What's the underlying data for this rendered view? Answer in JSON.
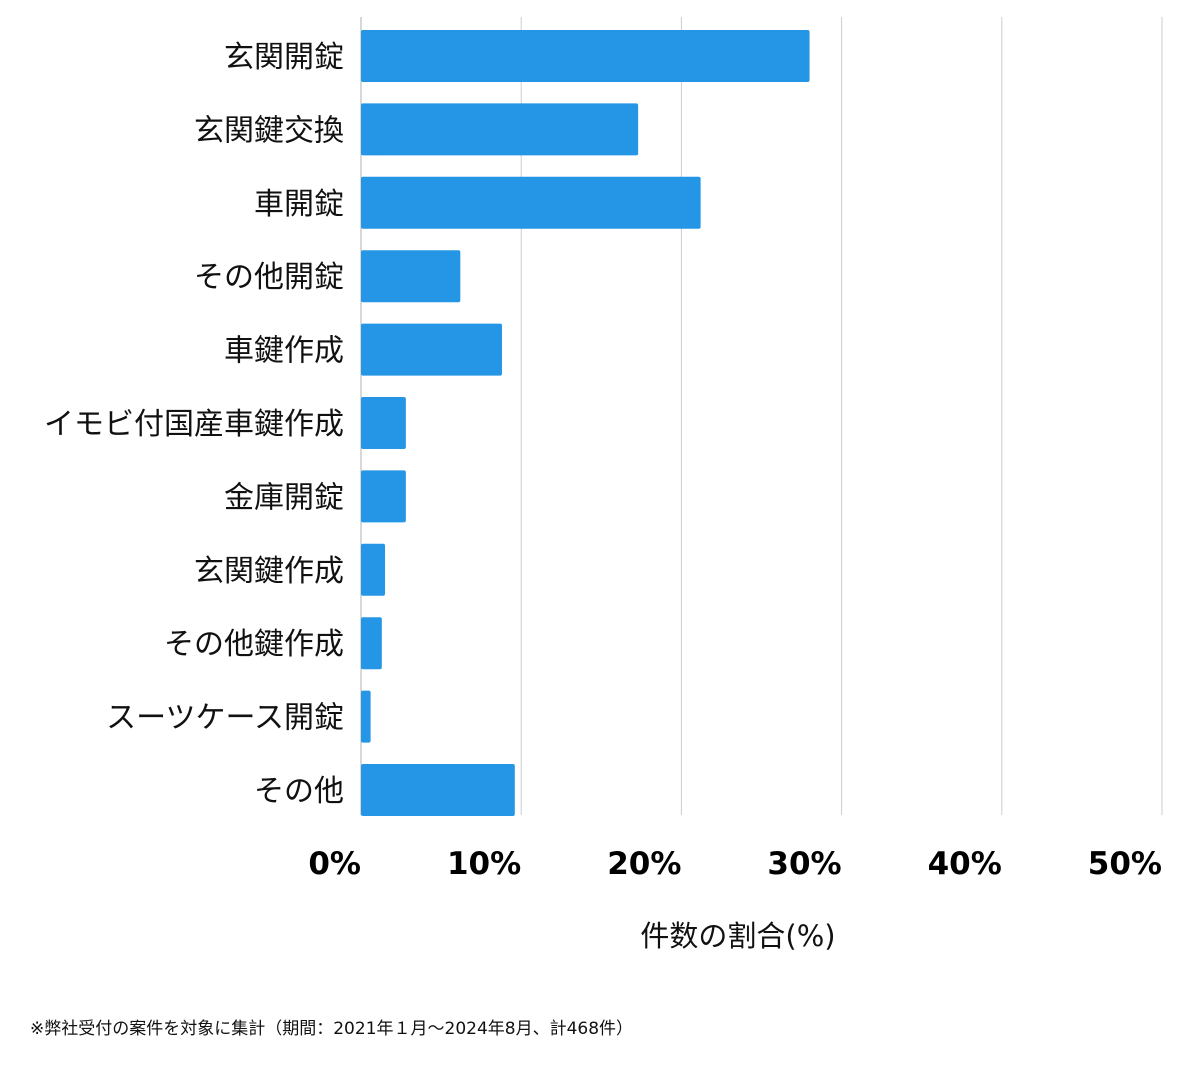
{
  "chart_data": {
    "type": "bar",
    "orientation": "horizontal",
    "categories": [
      "玄関開錠",
      "玄関鍵交換",
      "車開錠",
      "その他開錠",
      "車鍵作成",
      "イモビ付国産車鍵作成",
      "金庫開錠",
      "玄関鍵作成",
      "その他鍵作成",
      "スーツケース開錠",
      "その他"
    ],
    "values": [
      28.0,
      17.3,
      21.2,
      6.2,
      8.8,
      2.8,
      2.8,
      1.5,
      1.3,
      0.6,
      9.6
    ],
    "xlabel": "件数の割合(%)",
    "ylabel": "",
    "xlim": [
      0,
      50
    ],
    "xticks": [
      "0%",
      "10%",
      "20%",
      "30%",
      "40%",
      "50%"
    ],
    "grid": "vertical",
    "bar_color": "#2596e6",
    "grid_color": "#cccccc"
  },
  "footnote": "※弊社受付の案件を対象に集計（期間：2021年１月〜2024年8月、計468件）"
}
